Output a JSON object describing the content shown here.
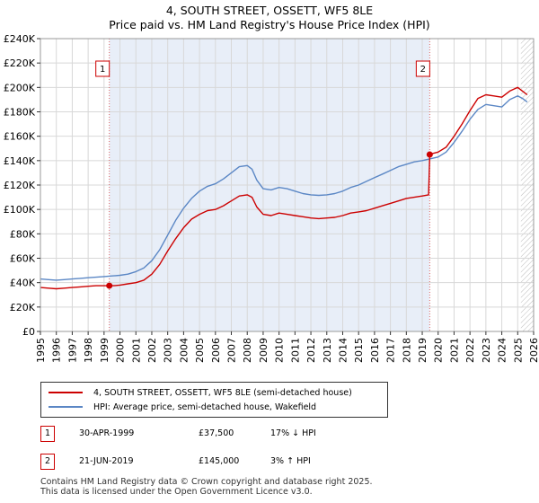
{
  "title_line1": "4, SOUTH STREET, OSSETT, WF5 8LE",
  "title_line2": "Price paid vs. HM Land Registry's House Price Index (HPI)",
  "chart_data": {
    "type": "line",
    "title": "4, SOUTH STREET, OSSETT, WF5 8LE — Price paid vs. HM Land Registry's House Price Index (HPI)",
    "xlim": [
      1995,
      2026
    ],
    "ylim": [
      0,
      240000
    ],
    "x_ticks": [
      1995,
      1996,
      1997,
      1998,
      1999,
      2000,
      2001,
      2002,
      2003,
      2004,
      2005,
      2006,
      2007,
      2008,
      2009,
      2010,
      2011,
      2012,
      2013,
      2014,
      2015,
      2016,
      2017,
      2018,
      2019,
      2020,
      2021,
      2022,
      2023,
      2024,
      2025,
      2026
    ],
    "y_ticks": [
      {
        "value": 0,
        "label": "£0"
      },
      {
        "value": 20000,
        "label": "£20K"
      },
      {
        "value": 40000,
        "label": "£40K"
      },
      {
        "value": 60000,
        "label": "£60K"
      },
      {
        "value": 80000,
        "label": "£80K"
      },
      {
        "value": 100000,
        "label": "£100K"
      },
      {
        "value": 120000,
        "label": "£120K"
      },
      {
        "value": 140000,
        "label": "£140K"
      },
      {
        "value": 160000,
        "label": "£160K"
      },
      {
        "value": 180000,
        "label": "£180K"
      },
      {
        "value": 200000,
        "label": "£200K"
      },
      {
        "value": 220000,
        "label": "£220K"
      },
      {
        "value": 240000,
        "label": "£240K"
      }
    ],
    "grid": true,
    "ownership_shading": {
      "from": 1999.33,
      "to": 2019.47,
      "color": "#e8eef8"
    },
    "future_hatch_from": 2025.2,
    "series": [
      {
        "name": "4, SOUTH STREET, OSSETT, WF5 8LE (semi-detached house)",
        "color": "#cc0000",
        "points": [
          [
            1995,
            36000
          ],
          [
            1995.5,
            35500
          ],
          [
            1996,
            35000
          ],
          [
            1996.5,
            35500
          ],
          [
            1997,
            36000
          ],
          [
            1997.5,
            36500
          ],
          [
            1998,
            37000
          ],
          [
            1998.5,
            37500
          ],
          [
            1999,
            37500
          ],
          [
            1999.33,
            37500
          ],
          [
            1999.6,
            37500
          ],
          [
            2000,
            38000
          ],
          [
            2000.5,
            39000
          ],
          [
            2001,
            40000
          ],
          [
            2001.5,
            42000
          ],
          [
            2002,
            47000
          ],
          [
            2002.5,
            55000
          ],
          [
            2003,
            66000
          ],
          [
            2003.5,
            76000
          ],
          [
            2004,
            85000
          ],
          [
            2004.5,
            92000
          ],
          [
            2005,
            96000
          ],
          [
            2005.5,
            99000
          ],
          [
            2006,
            100000
          ],
          [
            2006.5,
            103000
          ],
          [
            2007,
            107000
          ],
          [
            2007.5,
            111000
          ],
          [
            2008,
            112000
          ],
          [
            2008.3,
            110000
          ],
          [
            2008.6,
            102000
          ],
          [
            2009,
            96000
          ],
          [
            2009.5,
            95000
          ],
          [
            2010,
            97000
          ],
          [
            2010.5,
            96000
          ],
          [
            2011,
            95000
          ],
          [
            2011.5,
            94000
          ],
          [
            2012,
            93000
          ],
          [
            2012.5,
            92500
          ],
          [
            2013,
            93000
          ],
          [
            2013.5,
            93500
          ],
          [
            2014,
            95000
          ],
          [
            2014.5,
            97000
          ],
          [
            2015,
            98000
          ],
          [
            2015.5,
            99000
          ],
          [
            2016,
            101000
          ],
          [
            2016.5,
            103000
          ],
          [
            2017,
            105000
          ],
          [
            2017.5,
            107000
          ],
          [
            2018,
            109000
          ],
          [
            2018.5,
            110000
          ],
          [
            2019,
            111000
          ],
          [
            2019.4,
            112000
          ],
          [
            2019.47,
            145000
          ],
          [
            2019.7,
            146000
          ],
          [
            2020,
            147000
          ],
          [
            2020.5,
            151000
          ],
          [
            2021,
            160000
          ],
          [
            2021.5,
            170000
          ],
          [
            2022,
            181000
          ],
          [
            2022.5,
            191000
          ],
          [
            2023,
            194000
          ],
          [
            2023.5,
            193000
          ],
          [
            2024,
            192000
          ],
          [
            2024.5,
            197000
          ],
          [
            2025,
            200000
          ],
          [
            2025.3,
            197000
          ],
          [
            2025.6,
            194000
          ]
        ]
      },
      {
        "name": "HPI: Average price, semi-detached house, Wakefield",
        "color": "#5b87c5",
        "points": [
          [
            1995,
            43000
          ],
          [
            1995.5,
            42500
          ],
          [
            1996,
            42000
          ],
          [
            1996.5,
            42500
          ],
          [
            1997,
            43000
          ],
          [
            1997.5,
            43500
          ],
          [
            1998,
            44000
          ],
          [
            1998.5,
            44500
          ],
          [
            1999,
            45000
          ],
          [
            1999.5,
            45500
          ],
          [
            2000,
            46000
          ],
          [
            2000.5,
            47000
          ],
          [
            2001,
            49000
          ],
          [
            2001.5,
            52000
          ],
          [
            2002,
            58000
          ],
          [
            2002.5,
            67000
          ],
          [
            2003,
            79000
          ],
          [
            2003.5,
            91000
          ],
          [
            2004,
            101000
          ],
          [
            2004.5,
            109000
          ],
          [
            2005,
            115000
          ],
          [
            2005.5,
            119000
          ],
          [
            2006,
            121000
          ],
          [
            2006.5,
            125000
          ],
          [
            2007,
            130000
          ],
          [
            2007.5,
            135000
          ],
          [
            2008,
            136000
          ],
          [
            2008.3,
            133000
          ],
          [
            2008.6,
            124000
          ],
          [
            2009,
            117000
          ],
          [
            2009.5,
            116000
          ],
          [
            2010,
            118000
          ],
          [
            2010.5,
            117000
          ],
          [
            2011,
            115000
          ],
          [
            2011.5,
            113000
          ],
          [
            2012,
            112000
          ],
          [
            2012.5,
            111500
          ],
          [
            2013,
            112000
          ],
          [
            2013.5,
            113000
          ],
          [
            2014,
            115000
          ],
          [
            2014.5,
            118000
          ],
          [
            2015,
            120000
          ],
          [
            2015.5,
            123000
          ],
          [
            2016,
            126000
          ],
          [
            2016.5,
            129000
          ],
          [
            2017,
            132000
          ],
          [
            2017.5,
            135000
          ],
          [
            2018,
            137000
          ],
          [
            2018.5,
            139000
          ],
          [
            2019,
            140000
          ],
          [
            2019.5,
            141500
          ],
          [
            2020,
            143000
          ],
          [
            2020.5,
            147000
          ],
          [
            2021,
            155000
          ],
          [
            2021.5,
            164000
          ],
          [
            2022,
            174000
          ],
          [
            2022.5,
            182000
          ],
          [
            2023,
            186000
          ],
          [
            2023.5,
            185000
          ],
          [
            2024,
            184000
          ],
          [
            2024.5,
            190000
          ],
          [
            2025,
            193000
          ],
          [
            2025.3,
            191000
          ],
          [
            2025.6,
            188000
          ]
        ]
      }
    ],
    "sales": [
      {
        "label": "1",
        "x": 1999.33,
        "value": 37500
      },
      {
        "label": "2",
        "x": 2019.47,
        "value": 145000
      }
    ]
  },
  "legend": {
    "property_label": "4, SOUTH STREET, OSSETT, WF5 8LE (semi-detached house)",
    "hpi_label": "HPI: Average price, semi-detached house, Wakefield"
  },
  "sales_table": [
    {
      "num": "1",
      "date": "30-APR-1999",
      "price": "£37,500",
      "hpi": "17% ↓ HPI"
    },
    {
      "num": "2",
      "date": "21-JUN-2019",
      "price": "£145,000",
      "hpi": "3% ↑ HPI"
    }
  ],
  "footer_line1": "Contains HM Land Registry data © Crown copyright and database right 2025.",
  "footer_line2": "This data is licensed under the Open Government Licence v3.0.",
  "colors": {
    "property": "#cc0000",
    "hpi": "#5b87c5",
    "grid": "#d8d8d8",
    "shade": "#e8eef8"
  }
}
